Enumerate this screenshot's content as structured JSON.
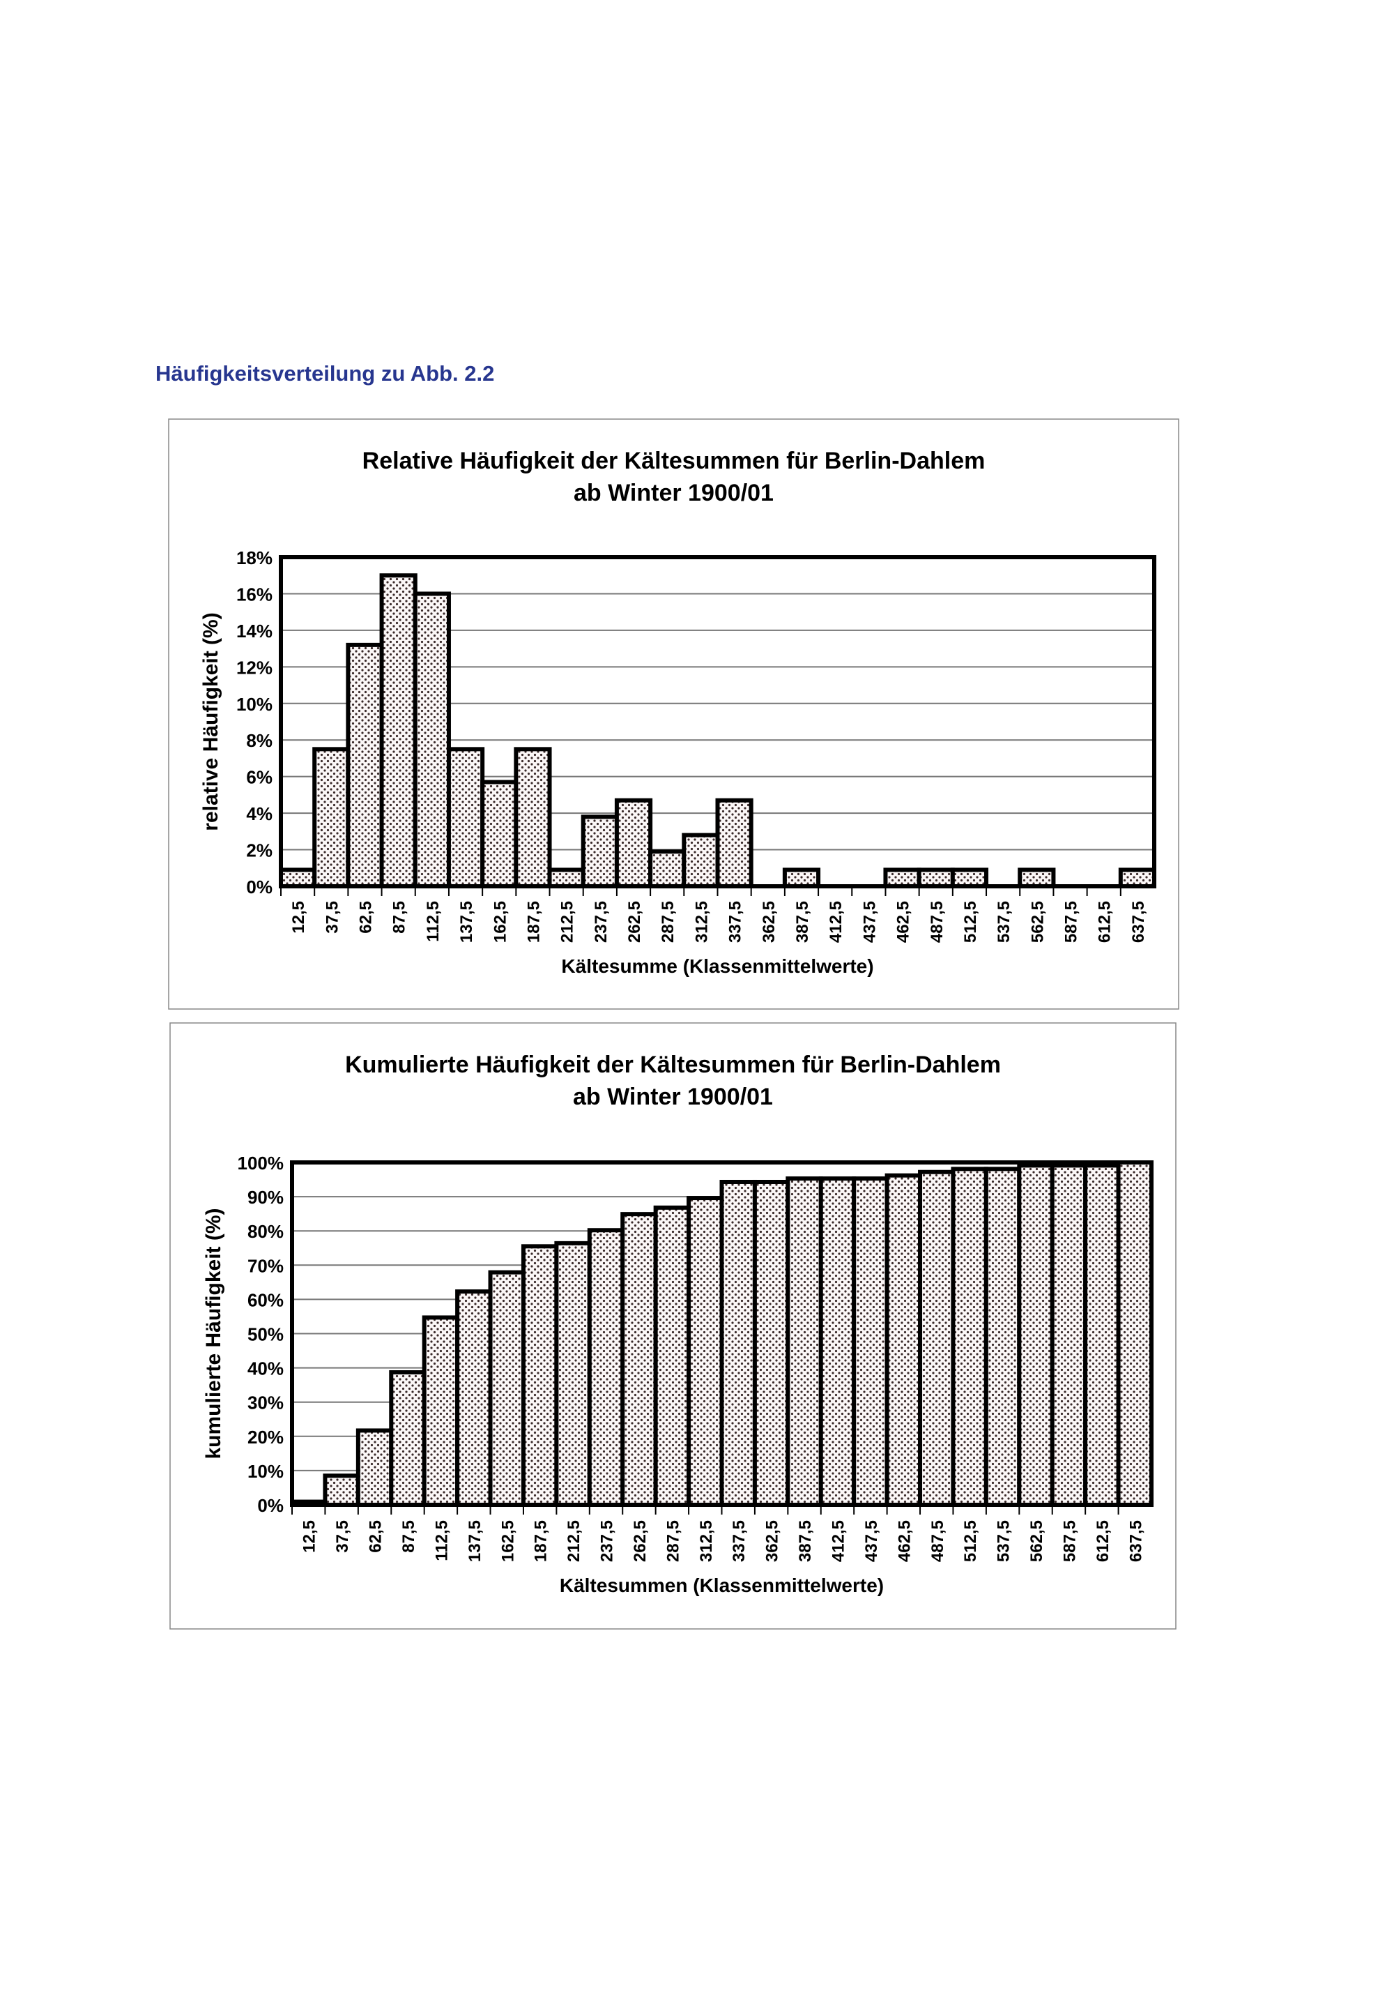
{
  "heading": "Häufigkeitsverteilung zu Abb. 2.2",
  "chart_data": [
    {
      "type": "bar",
      "title": [
        "Relative Häufigkeit der Kältesummen für Berlin-Dahlem",
        "ab Winter 1900/01"
      ],
      "xlabel": "Kältesumme (Klassenmittelwerte)",
      "ylabel": "relative Häufigkeit (%)",
      "ylim": [
        0,
        18
      ],
      "yticks": [
        "0%",
        "2%",
        "4%",
        "6%",
        "8%",
        "10%",
        "12%",
        "14%",
        "16%",
        "18%"
      ],
      "ytick_step": 2,
      "grid": true,
      "categories": [
        "12,5",
        "37,5",
        "62,5",
        "87,5",
        "112,5",
        "137,5",
        "162,5",
        "187,5",
        "212,5",
        "237,5",
        "262,5",
        "287,5",
        "312,5",
        "337,5",
        "362,5",
        "387,5",
        "412,5",
        "437,5",
        "462,5",
        "487,5",
        "512,5",
        "537,5",
        "562,5",
        "587,5",
        "612,5",
        "637,5"
      ],
      "values": [
        0.9,
        7.5,
        13.2,
        17.0,
        16.0,
        7.5,
        5.7,
        7.5,
        0.9,
        3.8,
        4.7,
        1.9,
        2.8,
        4.7,
        0,
        0.9,
        0,
        0,
        0.9,
        0.9,
        0.9,
        0,
        0.9,
        0,
        0,
        0.9
      ]
    },
    {
      "type": "bar",
      "title": [
        "Kumulierte Häufigkeit der Kältesummen für Berlin-Dahlem",
        "ab Winter 1900/01"
      ],
      "xlabel": "Kältesummen (Klassenmittelwerte)",
      "ylabel": "kumulierte Häufigkeit (%)",
      "ylim": [
        0,
        100
      ],
      "yticks": [
        "0%",
        "10%",
        "20%",
        "30%",
        "40%",
        "50%",
        "60%",
        "70%",
        "80%",
        "90%",
        "100%"
      ],
      "ytick_step": 10,
      "grid": true,
      "categories": [
        "12,5",
        "37,5",
        "62,5",
        "87,5",
        "112,5",
        "137,5",
        "162,5",
        "187,5",
        "212,5",
        "237,5",
        "262,5",
        "287,5",
        "312,5",
        "337,5",
        "362,5",
        "387,5",
        "412,5",
        "437,5",
        "462,5",
        "487,5",
        "512,5",
        "537,5",
        "562,5",
        "587,5",
        "612,5",
        "637,5"
      ],
      "values": [
        0.9,
        8.5,
        21.7,
        38.7,
        54.7,
        62.3,
        67.9,
        75.5,
        76.4,
        80.2,
        84.9,
        86.8,
        89.6,
        94.3,
        94.3,
        95.3,
        95.3,
        95.3,
        96.2,
        97.2,
        98.1,
        98.1,
        99.1,
        99.1,
        99.1,
        100
      ]
    }
  ]
}
